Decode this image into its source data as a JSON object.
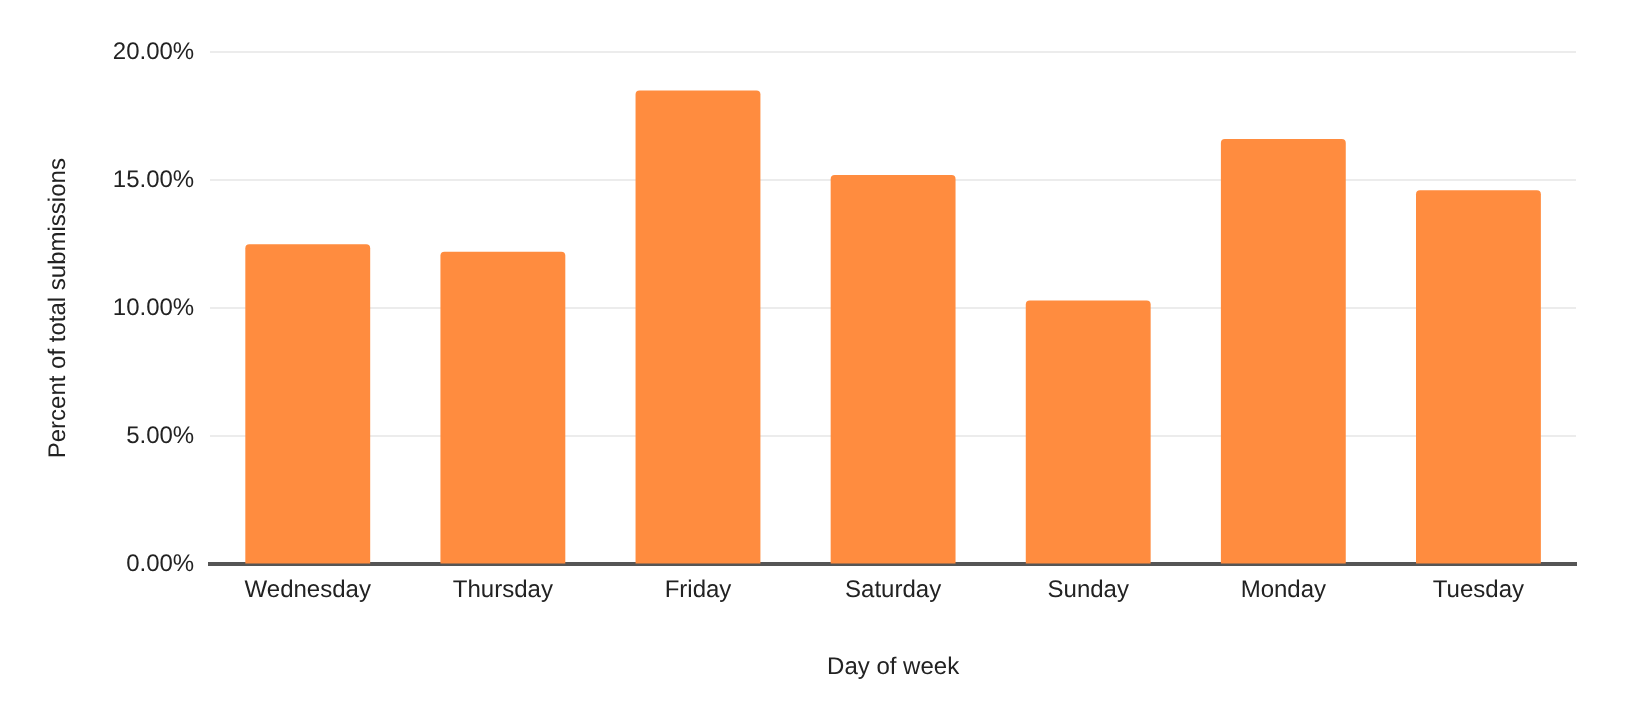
{
  "chart_data": {
    "type": "bar",
    "xlabel": "Day of week",
    "ylabel": "Percent of total submissions",
    "categories": [
      "Wednesday",
      "Thursday",
      "Friday",
      "Saturday",
      "Sunday",
      "Monday",
      "Tuesday"
    ],
    "values": [
      12.5,
      12.2,
      18.5,
      15.2,
      10.3,
      16.6,
      14.6
    ],
    "color": "#ff8c3f",
    "ylim": [
      0,
      20
    ],
    "yticks": [
      {
        "value": 0,
        "label": "0.00%"
      },
      {
        "value": 5,
        "label": "5.00%"
      },
      {
        "value": 10,
        "label": "10.00%"
      },
      {
        "value": 15,
        "label": "15.00%"
      },
      {
        "value": 20,
        "label": "20.00%"
      }
    ],
    "grid": "y",
    "legend": false
  }
}
